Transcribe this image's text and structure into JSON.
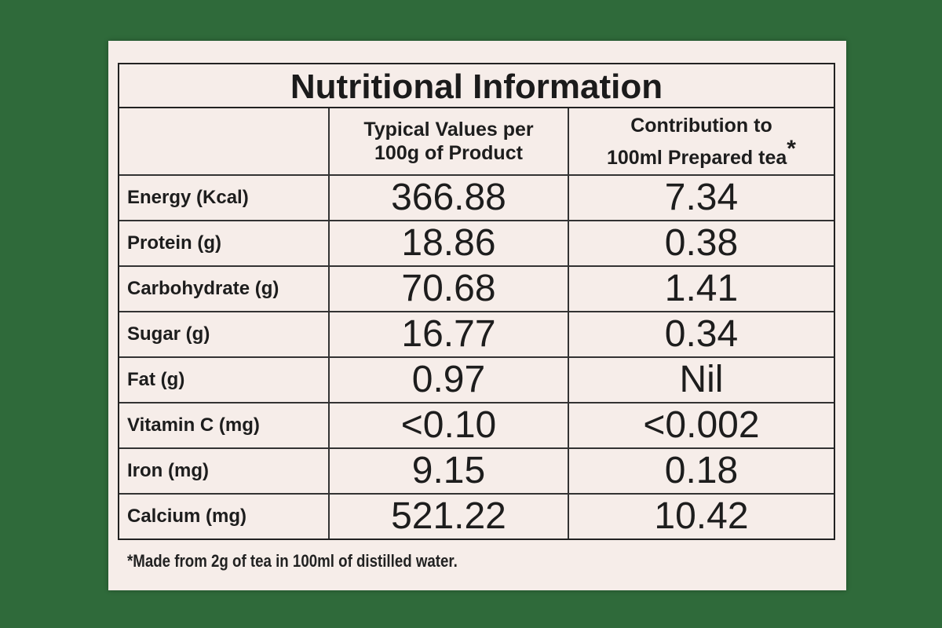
{
  "title": "Nutritional Information",
  "header": {
    "columns": [
      {
        "lines": [
          "Typical Values per",
          "100g of Product"
        ]
      },
      {
        "lines": [
          "Contribution to",
          "100ml Prepared tea"
        ],
        "marker": "*"
      }
    ]
  },
  "table": {
    "rows": [
      [
        "Energy (Kcal)",
        366.88,
        7.34
      ],
      [
        "Protein (g)",
        18.86,
        0.38
      ],
      [
        "Carbohydrate (g)",
        70.68,
        1.41
      ],
      [
        "Sugar (g)",
        16.77,
        0.34
      ],
      [
        "Fat (g)",
        0.97,
        "Nil"
      ],
      [
        "Vitamin C (mg)",
        "<0.10",
        "<0.002"
      ],
      [
        "Iron (mg)",
        9.15,
        0.18
      ],
      [
        "Calcium (mg)",
        521.22,
        10.42
      ]
    ]
  },
  "footnote": "*Made from 2g of tea in 100ml of distilled water."
}
